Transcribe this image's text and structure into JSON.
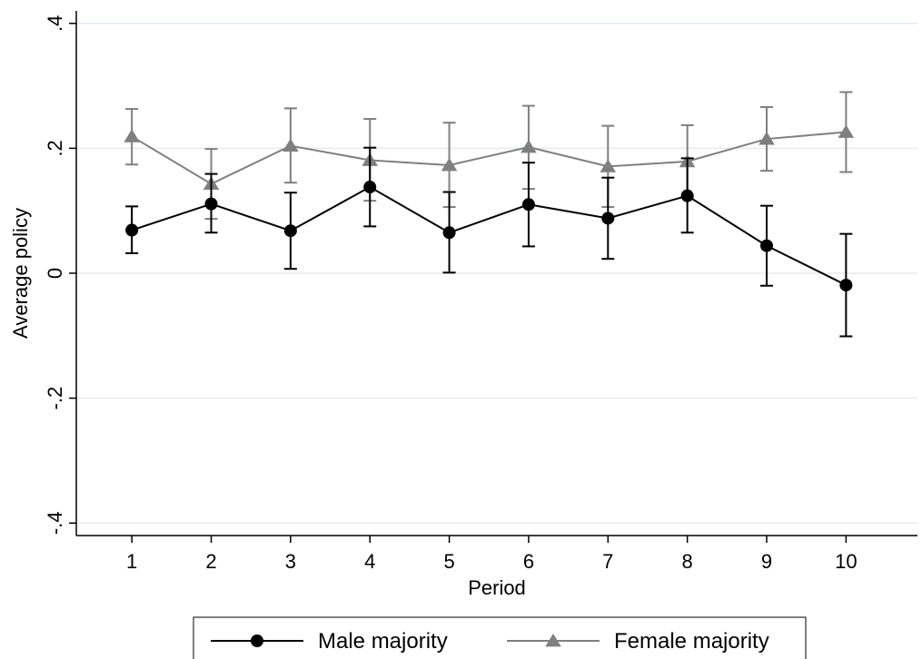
{
  "chart_data": {
    "type": "line",
    "title": "",
    "xlabel": "Period",
    "ylabel": "Average policy",
    "x": [
      1,
      2,
      3,
      4,
      5,
      6,
      7,
      8,
      9,
      10
    ],
    "xlim": [
      0.3,
      10.9
    ],
    "ylim": [
      -0.42,
      0.42
    ],
    "x_ticks": [
      1,
      2,
      3,
      4,
      5,
      6,
      7,
      8,
      9,
      10
    ],
    "x_tick_labels": [
      "1",
      "2",
      "3",
      "4",
      "5",
      "6",
      "7",
      "8",
      "9",
      "10"
    ],
    "y_ticks": [
      -0.4,
      -0.2,
      0,
      0.2,
      0.4
    ],
    "y_tick_labels": [
      "-.4",
      "-.2",
      "0",
      ".2",
      ".4"
    ],
    "grid": true,
    "legend_position": "bottom",
    "series": [
      {
        "name": "Male majority",
        "marker": "circle",
        "color": "#000000",
        "values": [
          0.069,
          0.111,
          0.068,
          0.138,
          0.065,
          0.11,
          0.088,
          0.124,
          0.044,
          -0.019
        ],
        "lower": [
          0.032,
          0.065,
          0.007,
          0.075,
          0.001,
          0.043,
          0.023,
          0.065,
          -0.02,
          -0.101
        ],
        "upper": [
          0.107,
          0.159,
          0.129,
          0.201,
          0.13,
          0.177,
          0.153,
          0.184,
          0.108,
          0.063
        ]
      },
      {
        "name": "Female majority",
        "marker": "triangle",
        "color": "#7f7f7f",
        "values": [
          0.219,
          0.143,
          0.204,
          0.181,
          0.173,
          0.202,
          0.171,
          0.179,
          0.215,
          0.226
        ],
        "lower": [
          0.174,
          0.087,
          0.145,
          0.116,
          0.106,
          0.135,
          0.106,
          0.121,
          0.164,
          0.162
        ],
        "upper": [
          0.263,
          0.199,
          0.264,
          0.247,
          0.241,
          0.268,
          0.236,
          0.237,
          0.266,
          0.29
        ]
      }
    ]
  }
}
